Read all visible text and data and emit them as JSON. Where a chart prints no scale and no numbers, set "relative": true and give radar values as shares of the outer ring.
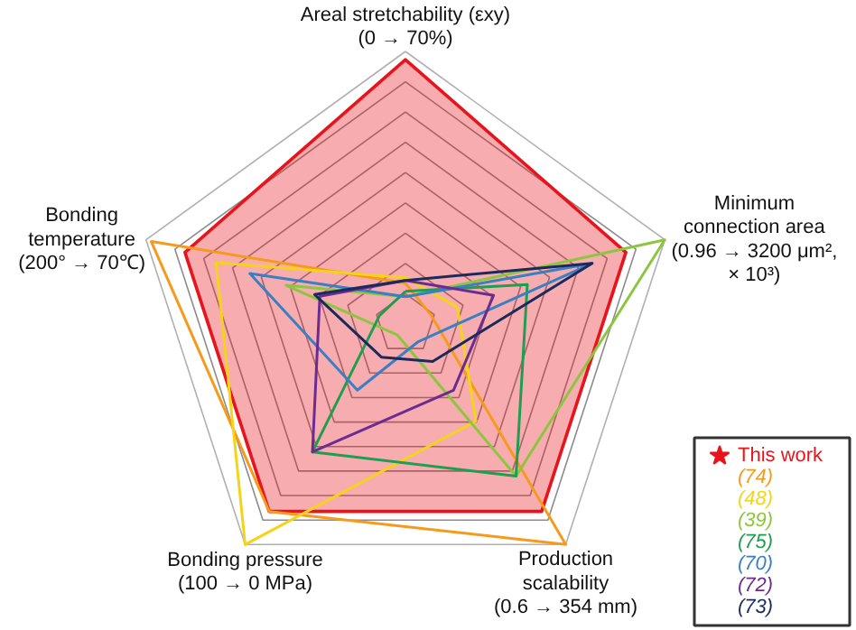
{
  "chart_data": {
    "type": "radar",
    "relative": true,
    "grid": true,
    "legend": "bottom right",
    "categories": [
      "Areal stretchability (εxy)\n(0 → 70%)",
      "Minimum\nconnection area\n(0.96 → 3200 μm²,\n× 10³)",
      "Production\nscalability\n(0.6 → 354 mm)",
      "Bonding pressure\n(100 → 0 MPa)",
      "Bonding\ntemperature\n(200° → 70℃)"
    ],
    "series": [
      {
        "name": "This work",
        "color": "#e8141c",
        "type": "area",
        "values": [
          0.97,
          0.85,
          0.85,
          0.85,
          0.85
        ]
      },
      {
        "name": "(74)",
        "color": "#f59a1b",
        "values": [
          0.15,
          0.1,
          1.0,
          0.85,
          0.98
        ]
      },
      {
        "name": "(48)",
        "color": "#f5d31b",
        "values": [
          0.17,
          0.2,
          0.44,
          1.0,
          0.73
        ]
      },
      {
        "name": "(39)",
        "color": "#8cc63f",
        "values": [
          0.1,
          1.0,
          0.69,
          0.05,
          0.46
        ]
      },
      {
        "name": "(75)",
        "color": "#1e9e50",
        "values": [
          0.12,
          0.47,
          0.69,
          0.58,
          0.1
        ]
      },
      {
        "name": "(70)",
        "color": "#3a7fc1",
        "values": [
          0.1,
          0.72,
          0.08,
          0.3,
          0.6
        ]
      },
      {
        "name": "(72)",
        "color": "#6a2c91",
        "values": [
          0.16,
          0.34,
          0.3,
          0.58,
          0.33
        ]
      },
      {
        "name": "(73)",
        "color": "#1b2a5c",
        "values": [
          0.16,
          0.72,
          0.17,
          0.15,
          0.35
        ]
      }
    ]
  }
}
